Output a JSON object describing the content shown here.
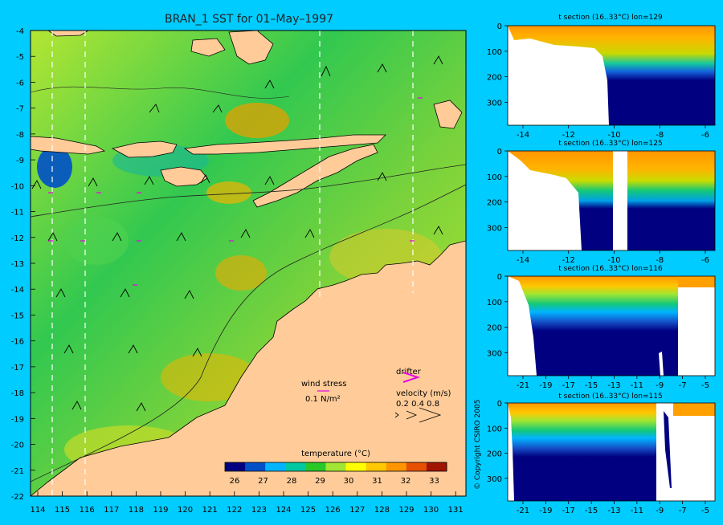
{
  "main_map": {
    "title": "BRAN_1 SST for 01–May–1997",
    "lat_ticks": [
      "-4",
      "-5",
      "-6",
      "-7",
      "-8",
      "-9",
      "-10",
      "-11",
      "-12",
      "-13",
      "-14",
      "-15",
      "-16",
      "-17",
      "-18",
      "-19",
      "-20",
      "-21",
      "-22"
    ],
    "lon_ticks": [
      "114",
      "115",
      "116",
      "117",
      "118",
      "119",
      "120",
      "121",
      "122",
      "123",
      "124",
      "125",
      "126",
      "127",
      "128",
      "129",
      "130",
      "131"
    ],
    "legend": {
      "wind_stress_label": "wind stress",
      "wind_stress_value": "0.1 N/m²",
      "drifter_label": "drifter",
      "velocity_label": "velocity (m/s)",
      "velocity_values": "0.2 0.4 0.8"
    },
    "colorbar": {
      "title": "temperature (°C)",
      "ticks": [
        "26",
        "27",
        "28",
        "29",
        "30",
        "31",
        "32",
        "33"
      ],
      "colors": [
        "#000080",
        "#0050c8",
        "#00b4ff",
        "#00c8a0",
        "#28c828",
        "#a0e632",
        "#ffff00",
        "#ffc800",
        "#ff9600",
        "#e65000",
        "#a01400"
      ]
    }
  },
  "sections": [
    {
      "title": "t section (16..33°C) lon=129",
      "y_ticks": [
        "0",
        "100",
        "200",
        "300"
      ],
      "x_ticks": [
        "-14",
        "-12",
        "-10",
        "-8",
        "-6"
      ]
    },
    {
      "title": "t section (16..33°C) lon=125",
      "y_ticks": [
        "0",
        "100",
        "200",
        "300"
      ],
      "x_ticks": [
        "-14",
        "-12",
        "-10",
        "-8",
        "-6"
      ]
    },
    {
      "title": "t section (16..33°C) lon=116",
      "y_ticks": [
        "0",
        "100",
        "200",
        "300"
      ],
      "x_ticks": [
        "-21",
        "-19",
        "-17",
        "-15",
        "-13",
        "-11",
        "-9",
        "-7",
        "-5"
      ]
    },
    {
      "title": "t section (16..33°C) lon=115",
      "y_ticks": [
        "0",
        "100",
        "200",
        "300"
      ],
      "x_ticks": [
        "-21",
        "-19",
        "-17",
        "-15",
        "-13",
        "-11",
        "-9",
        "-7",
        "-5"
      ]
    }
  ],
  "copyright": "© Copyright CSIRO 2005",
  "colors": {
    "background": "#00ccff",
    "land": "#ffcc99",
    "deep": "#000080"
  }
}
